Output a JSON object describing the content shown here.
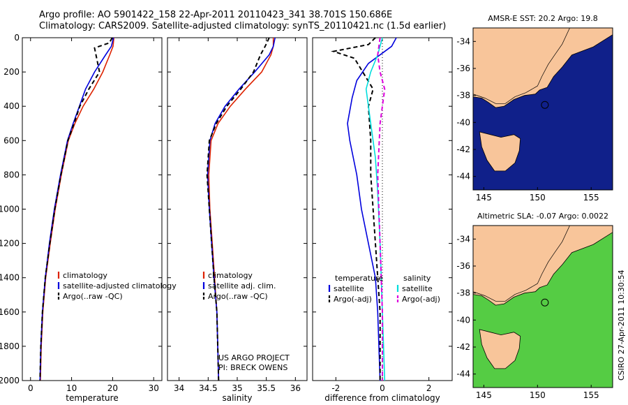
{
  "header": {
    "line1": "Argo profile: AO 5901422_158 22-Apr-2011 20110423_341 38.701S 150.686E",
    "line2": "Climatology: CARS2009. Satellite-adjusted climatology: synTS_20110421.nc (1.5d earlier)"
  },
  "credit": {
    "project": "US ARGO PROJECT",
    "pi": "PI: BRECK OWENS",
    "stamp": "CSIRO 27-Apr-2011 10:30:54"
  },
  "chart_data": [
    {
      "type": "line",
      "xlabel": "temperature",
      "xlim": [
        -2,
        32
      ],
      "ylim": [
        2000,
        0
      ],
      "xticks": [
        0,
        10,
        20,
        30
      ],
      "yticks": [
        0,
        200,
        400,
        600,
        800,
        1000,
        1200,
        1400,
        1600,
        1800,
        2000
      ],
      "legend": [
        "climatology",
        "satellite-adjusted climatology",
        "Argo(..raw -QC)"
      ],
      "series": [
        {
          "name": "climatology",
          "color": "#dd2200",
          "dash": "solid",
          "x": [
            20.3,
            20.1,
            19.3,
            17.6,
            15.4,
            12.8,
            10.8,
            9.2,
            7.5,
            6.0,
            4.8,
            3.7,
            3.0,
            2.6,
            2.4
          ],
          "y": [
            0,
            50,
            100,
            200,
            300,
            400,
            500,
            600,
            800,
            1000,
            1200,
            1400,
            1600,
            1800,
            2000
          ]
        },
        {
          "name": "satellite-adjusted climatology",
          "color": "#0000dd",
          "dash": "solid",
          "x": [
            20.2,
            19.7,
            18.3,
            15.6,
            13.4,
            11.9,
            10.4,
            9.0,
            7.3,
            5.8,
            4.6,
            3.6,
            2.9,
            2.5,
            2.3
          ],
          "y": [
            0,
            50,
            100,
            200,
            300,
            400,
            500,
            600,
            800,
            1000,
            1200,
            1400,
            1600,
            1800,
            2000
          ]
        },
        {
          "name": "Argo(..raw -QC)",
          "color": "#000000",
          "dash": "dashed",
          "x": [
            19.9,
            19.2,
            15.6,
            16.8,
            14.2,
            12.0,
            10.6,
            9.1,
            7.4,
            5.9,
            4.7,
            3.6,
            2.9,
            2.5,
            2.3
          ],
          "y": [
            0,
            30,
            60,
            200,
            300,
            400,
            500,
            600,
            800,
            1000,
            1200,
            1400,
            1600,
            1800,
            2000
          ]
        }
      ]
    },
    {
      "type": "line",
      "xlabel": "salinity",
      "xlim": [
        33.8,
        36.2
      ],
      "ylim": [
        2000,
        0
      ],
      "xticks": [
        34,
        34.5,
        35,
        35.5,
        36
      ],
      "legend": [
        "climatology",
        "satellite adj. clim.",
        "Argo(..raw -QC)"
      ],
      "series": [
        {
          "name": "climatology",
          "color": "#dd2200",
          "dash": "solid",
          "x": [
            35.62,
            35.62,
            35.58,
            35.42,
            35.14,
            34.88,
            34.67,
            34.55,
            34.51,
            34.53,
            34.57,
            34.61,
            34.65,
            34.68
          ],
          "y": [
            0,
            50,
            100,
            200,
            300,
            400,
            500,
            600,
            800,
            1000,
            1200,
            1400,
            1600,
            2000
          ]
        },
        {
          "name": "satellite adj. clim.",
          "color": "#0000dd",
          "dash": "solid",
          "x": [
            35.65,
            35.62,
            35.55,
            35.3,
            35.03,
            34.79,
            34.62,
            34.53,
            34.49,
            34.52,
            34.56,
            34.6,
            34.65,
            34.68
          ],
          "y": [
            0,
            50,
            100,
            200,
            300,
            400,
            500,
            600,
            800,
            1000,
            1200,
            1400,
            1600,
            2000
          ]
        },
        {
          "name": "Argo(..raw -QC)",
          "color": "#000000",
          "dash": "dashed",
          "x": [
            35.55,
            35.48,
            35.4,
            35.28,
            35.06,
            34.82,
            34.64,
            34.52,
            34.48,
            34.52,
            34.56,
            34.6,
            34.65,
            34.68
          ],
          "y": [
            0,
            50,
            100,
            200,
            300,
            400,
            500,
            600,
            800,
            1000,
            1200,
            1400,
            1600,
            2000
          ]
        }
      ]
    },
    {
      "type": "line",
      "xlabel": "difference from climatology",
      "xlim": [
        -3,
        3
      ],
      "ylim": [
        2000,
        0
      ],
      "xticks": [
        -2,
        0,
        2
      ],
      "legend_groups": [
        {
          "title": "temperature",
          "items": [
            "satellite",
            "Argo(-adj)"
          ]
        },
        {
          "title": "salinity",
          "items": [
            "satellite",
            "Argo(-adj)"
          ]
        }
      ],
      "series": [
        {
          "name": "satellite",
          "group": "temperature",
          "color": "#0000dd",
          "dash": "solid",
          "x": [
            0.6,
            0.4,
            -0.6,
            -1.1,
            -1.3,
            -1.5,
            -1.4,
            -1.1,
            -0.9,
            -0.6,
            -0.3,
            -0.2,
            -0.1
          ],
          "y": [
            0,
            50,
            150,
            250,
            350,
            500,
            600,
            800,
            1000,
            1200,
            1400,
            1600,
            2000
          ]
        },
        {
          "name": "Argo(-adj)",
          "group": "temperature",
          "color": "#000000",
          "dash": "dashed",
          "x": [
            -0.3,
            -0.6,
            -2.1,
            -1.2,
            -0.4,
            -0.6,
            -0.5,
            -0.5,
            -0.4,
            -0.3,
            -0.1,
            -0.1
          ],
          "y": [
            0,
            40,
            80,
            120,
            300,
            400,
            600,
            800,
            1000,
            1200,
            1600,
            2000
          ]
        },
        {
          "name": "satellite",
          "group": "salinity",
          "color": "#00dddd",
          "dash": "solid",
          "x": [
            0.0,
            -0.2,
            -0.5,
            -0.7,
            -0.6,
            -0.5,
            -0.3,
            -0.2,
            -0.1,
            0.0,
            0.1
          ],
          "y": [
            0,
            100,
            200,
            300,
            400,
            500,
            700,
            900,
            1200,
            1600,
            2000
          ]
        },
        {
          "name": "Argo(-adj)",
          "group": "salinity",
          "color": "#dd00dd",
          "dash": "dashed",
          "x": [
            -0.1,
            -0.2,
            -0.1,
            0.1,
            -0.1,
            -0.2,
            -0.1,
            0.0,
            0.0
          ],
          "y": [
            0,
            100,
            200,
            300,
            500,
            800,
            1200,
            1600,
            2000
          ]
        }
      ]
    },
    {
      "type": "heatmap",
      "title": "AMSR-E SST: 20.2 Argo: 19.8",
      "xlim": [
        144,
        157
      ],
      "ylim": [
        -45,
        -33
      ],
      "xticks": [
        145,
        150,
        155
      ],
      "yticks": [
        -34,
        -36,
        -38,
        -40,
        -42,
        -44
      ],
      "marker": {
        "lon": 150.686,
        "lat": -38.701
      }
    },
    {
      "type": "heatmap",
      "title": "Altimetric SLA: -0.07 Argo: 0.0022",
      "xlim": [
        144,
        157
      ],
      "ylim": [
        -45,
        -33
      ],
      "xticks": [
        145,
        150,
        155
      ],
      "yticks": [
        -34,
        -36,
        -38,
        -40,
        -42,
        -44
      ],
      "marker": {
        "lon": 150.686,
        "lat": -38.701
      }
    }
  ]
}
